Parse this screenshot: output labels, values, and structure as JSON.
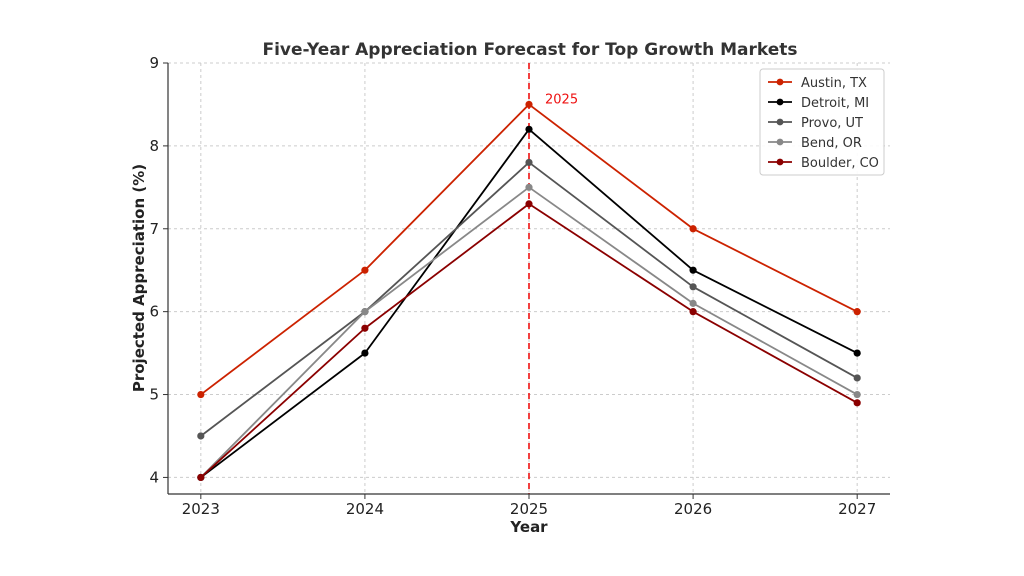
{
  "chart_data": {
    "type": "line",
    "title": "Five-Year Appreciation Forecast for Top Growth Markets",
    "xlabel": "Year",
    "ylabel": "Projected Appreciation (%)",
    "x": [
      2023,
      2024,
      2025,
      2026,
      2027
    ],
    "xlim": [
      2022.8,
      2027.2
    ],
    "ylim": [
      3.8,
      9
    ],
    "yticks": [
      4,
      5,
      6,
      7,
      8,
      9
    ],
    "grid": true,
    "legend_position": "top-right",
    "series": [
      {
        "name": "Austin, TX",
        "color": "#cc2200",
        "values": [
          5.0,
          6.5,
          8.5,
          7.0,
          6.0
        ]
      },
      {
        "name": "Detroit, MI",
        "color": "#000000",
        "values": [
          4.0,
          5.5,
          8.2,
          6.5,
          5.5
        ]
      },
      {
        "name": "Provo, UT",
        "color": "#555555",
        "values": [
          4.5,
          6.0,
          7.8,
          6.3,
          5.2
        ]
      },
      {
        "name": "Bend, OR",
        "color": "#888888",
        "values": [
          4.0,
          6.0,
          7.5,
          6.1,
          5.0
        ]
      },
      {
        "name": "Boulder, CO",
        "color": "#8b0000",
        "values": [
          4.0,
          5.8,
          7.3,
          6.0,
          4.9
        ]
      }
    ],
    "annotation": {
      "x": 2025,
      "label": "2025",
      "color": "#ee1111",
      "style": "dashed-vertical-line"
    }
  }
}
